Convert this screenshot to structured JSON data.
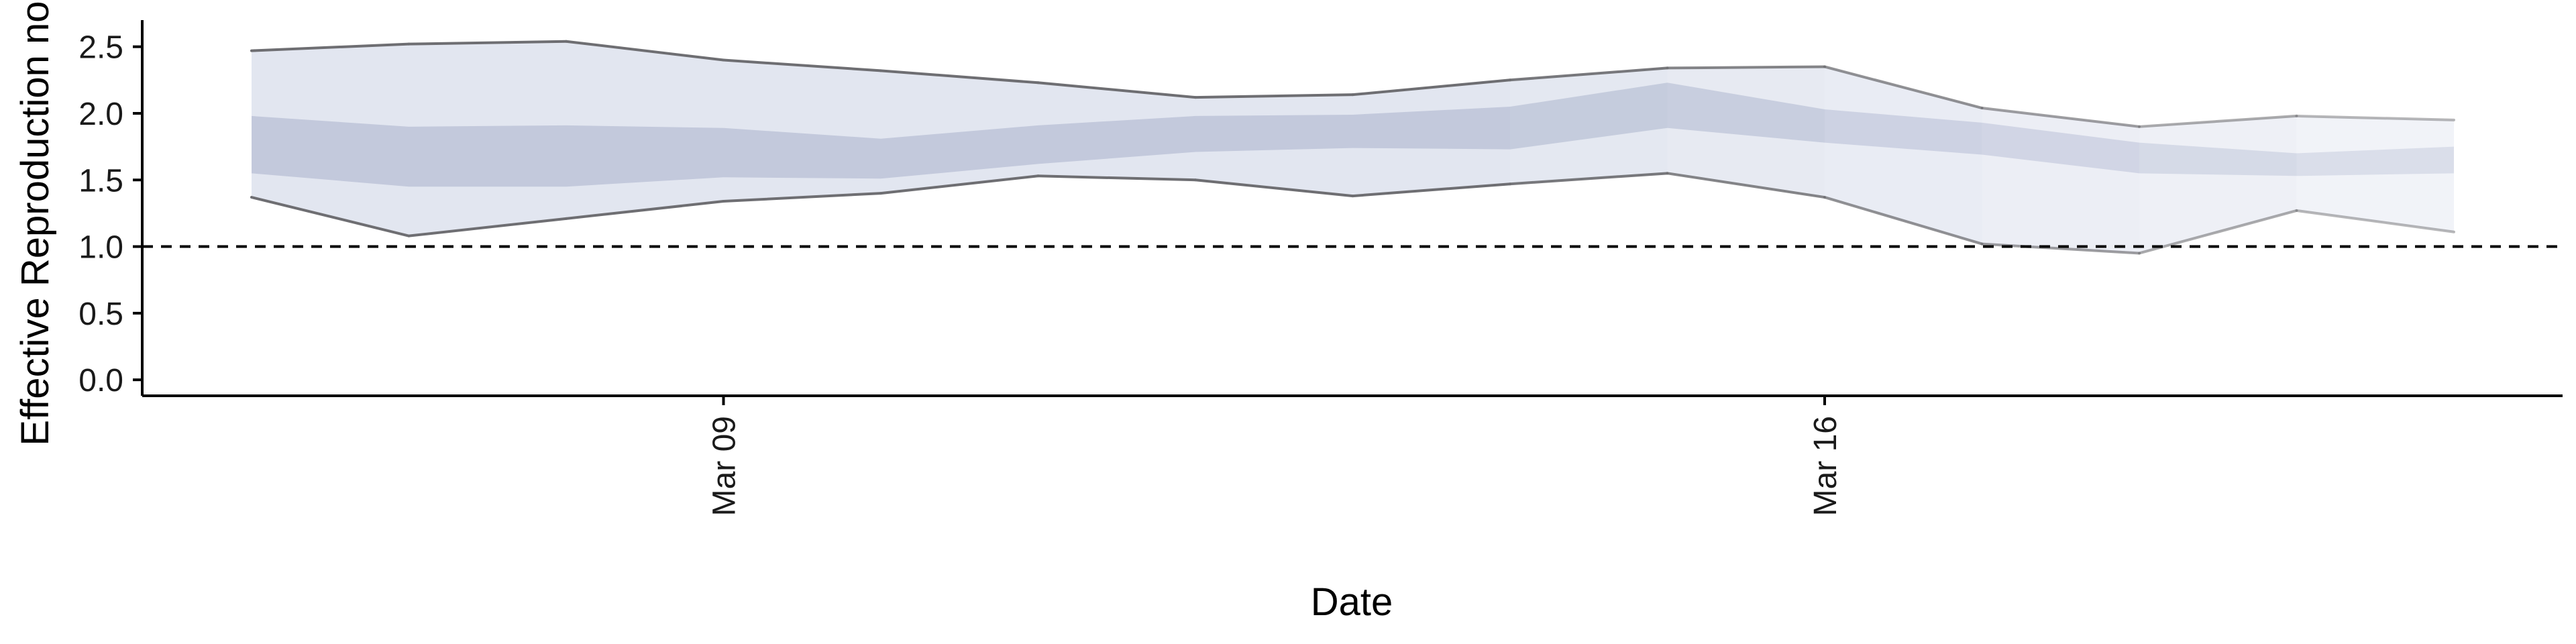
{
  "chart_data": {
    "type": "area",
    "title": "",
    "xlabel": "Date",
    "ylabel": "Effective Reproduction no.",
    "x": [
      "2020-03-06",
      "2020-03-07",
      "2020-03-08",
      "2020-03-09",
      "2020-03-10",
      "2020-03-11",
      "2020-03-12",
      "2020-03-13",
      "2020-03-14",
      "2020-03-15",
      "2020-03-16",
      "2020-03-17",
      "2020-03-18",
      "2020-03-19",
      "2020-03-20"
    ],
    "x_tick_labels": [
      {
        "date": "2020-03-09",
        "label": "Mar 09"
      },
      {
        "date": "2020-03-16",
        "label": "Mar 16"
      }
    ],
    "ylim": [
      -0.12,
      2.75
    ],
    "y_ticks": [
      0.0,
      0.5,
      1.0,
      1.5,
      2.0,
      2.5
    ],
    "y_tick_labels": [
      "0.0",
      "0.5",
      "1.0",
      "1.5",
      "2.0",
      "2.5"
    ],
    "reference_line": {
      "y": 1.0,
      "style": "dashed"
    },
    "grid": false,
    "series": [
      {
        "band": "outer interval",
        "lower": [
          1.37,
          1.08,
          1.21,
          1.34,
          1.4,
          1.53,
          1.5,
          1.38,
          1.47,
          1.55,
          1.37,
          1.02,
          0.95,
          1.27,
          1.11
        ],
        "upper": [
          2.47,
          2.52,
          2.54,
          2.4,
          2.32,
          2.23,
          2.12,
          2.14,
          2.25,
          2.34,
          2.35,
          2.04,
          1.9,
          1.98,
          1.95
        ]
      },
      {
        "band": "inner interval",
        "lower": [
          1.55,
          1.45,
          1.45,
          1.52,
          1.51,
          1.62,
          1.71,
          1.74,
          1.73,
          1.89,
          1.78,
          1.69,
          1.55,
          1.53,
          1.55
        ],
        "upper": [
          1.98,
          1.9,
          1.91,
          1.89,
          1.81,
          1.91,
          1.98,
          1.99,
          2.05,
          2.23,
          2.03,
          1.93,
          1.78,
          1.7,
          1.75
        ]
      }
    ],
    "colors": {
      "outer_band": "#e2e6f0",
      "inner_band": "#c3c9dc",
      "outline": "#6e6e72",
      "reference_line": "#000000",
      "axis": "#000000"
    }
  }
}
